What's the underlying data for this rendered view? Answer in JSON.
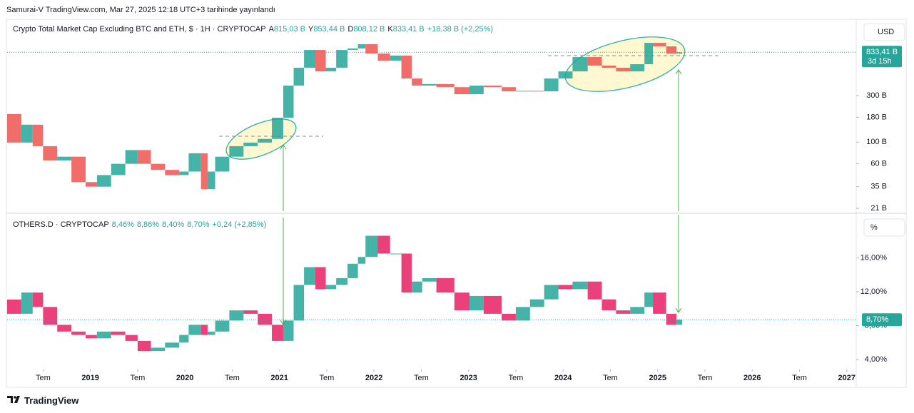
{
  "header": {
    "published": "Samurai-V TradingView.com, Mar 27, 2025 12:18 UTC+3 tarihinde yayınlandı"
  },
  "footer": {
    "brand": "TradingView"
  },
  "chart_data": [
    {
      "type": "candlestick",
      "title": "Crypto Total Market Cap Excluding BTC and ETH, $ · 1H · CRYPTOCAP",
      "ohlc": [
        {
          "key": "A",
          "label": "815,03 B"
        },
        {
          "key": "Y",
          "label": "853,44 B"
        },
        {
          "key": "D",
          "label": "808,12 B"
        },
        {
          "key": "K",
          "label": "833,41 B"
        }
      ],
      "change": "+18,38 B (+2,25%)",
      "unit": "USD",
      "price_label": "833,41 B",
      "countdown": "3d 15h",
      "log_scale": true,
      "up_color": "#26a69a",
      "down_color": "#ef5350",
      "x": [
        2018.12,
        2018.27,
        2018.39,
        2018.5,
        2018.65,
        2018.8,
        2018.95,
        2019.07,
        2019.22,
        2019.37,
        2019.5,
        2019.64,
        2019.79,
        2019.94,
        2020.04,
        2020.17,
        2020.24,
        2020.32,
        2020.47,
        2020.62,
        2020.77,
        2020.92,
        2021.04,
        2021.15,
        2021.26,
        2021.38,
        2021.49,
        2021.6,
        2021.72,
        2021.83,
        2021.91,
        2022.04,
        2022.17,
        2022.29,
        2022.4,
        2022.51,
        2022.66,
        2022.85,
        2023.01,
        2023.16,
        2023.35,
        2023.5,
        2023.65,
        2023.8,
        2023.95,
        2024.1,
        2024.26,
        2024.41,
        2024.56,
        2024.71,
        2024.86,
        2024.95,
        2025.09,
        2025.2,
        2025.26
      ],
      "values": [
        194,
        99,
        151,
        91,
        65,
        71,
        39,
        35,
        46,
        60,
        83,
        60,
        52,
        46,
        50,
        77,
        33,
        50,
        71,
        91,
        99,
        108,
        178,
        380,
        579,
        880,
        531,
        579,
        880,
        912,
        1008,
        809,
        684,
        771,
        449,
        380,
        394,
        366,
        310,
        380,
        366,
        332,
        336,
        332,
        449,
        531,
        744,
        609,
        579,
        531,
        629,
        1041,
        958,
        809,
        833.41
      ],
      "xlim": [
        2018.12,
        2027.1
      ],
      "ylim": [
        19,
        1727
      ],
      "yticks": [
        {
          "value": 21,
          "label": "21 B"
        },
        {
          "value": 35,
          "label": "35 B"
        },
        {
          "value": 60,
          "label": "60 B"
        },
        {
          "value": 100,
          "label": "100 B"
        },
        {
          "value": 180,
          "label": "180 B"
        },
        {
          "value": 300,
          "label": "300 B"
        }
      ]
    },
    {
      "type": "candlestick",
      "title": "OTHERS.D · CRYPTOCAP",
      "ohlc": [
        {
          "label": "8,46%"
        },
        {
          "label": "8,86%"
        },
        {
          "label": "8,40%"
        },
        {
          "label": "8,70%"
        }
      ],
      "change": "+0,24 (+2,85%)",
      "unit": "%",
      "price_label": "8,70%",
      "log_scale": false,
      "up_color": "#26a69a",
      "down_color": "#e91e63",
      "x": [
        2018.12,
        2018.27,
        2018.39,
        2018.5,
        2018.65,
        2018.8,
        2018.95,
        2019.07,
        2019.22,
        2019.37,
        2019.5,
        2019.64,
        2019.79,
        2019.94,
        2020.04,
        2020.17,
        2020.24,
        2020.32,
        2020.47,
        2020.62,
        2020.77,
        2020.92,
        2021.04,
        2021.15,
        2021.26,
        2021.38,
        2021.49,
        2021.6,
        2021.72,
        2021.83,
        2021.91,
        2022.04,
        2022.17,
        2022.29,
        2022.4,
        2022.51,
        2022.66,
        2022.85,
        2023.01,
        2023.16,
        2023.35,
        2023.5,
        2023.65,
        2023.8,
        2023.95,
        2024.1,
        2024.26,
        2024.41,
        2024.56,
        2024.71,
        2024.86,
        2024.95,
        2025.09,
        2025.2,
        2025.26
      ],
      "values": [
        11.08,
        9.4,
        11.9,
        10.2,
        8.1,
        7.3,
        6.9,
        6.5,
        7.3,
        6.9,
        6.2,
        5.0,
        5.4,
        6.0,
        6.9,
        8.1,
        6.9,
        7.3,
        8.6,
        9.8,
        9.4,
        8.1,
        6.2,
        8.6,
        12.8,
        14.9,
        12.3,
        12.8,
        13.6,
        15.3,
        16.1,
        18.6,
        16.5,
        16.5,
        11.9,
        13.2,
        13.6,
        11.9,
        9.8,
        11.5,
        9.4,
        8.6,
        10.2,
        11.1,
        12.8,
        12.3,
        13.2,
        11.1,
        9.8,
        9.4,
        10.2,
        11.9,
        9.4,
        8.1,
        8.7
      ],
      "xlim": [
        2018.12,
        2027.1
      ],
      "ylim": [
        3.08,
        21
      ],
      "yticks": [
        {
          "value": 4,
          "label": "4,00%"
        },
        {
          "value": 8,
          "label": "8,00%"
        },
        {
          "value": 12,
          "label": "12,00%"
        },
        {
          "value": 16,
          "label": "16,00%"
        }
      ],
      "xticks": [
        {
          "value": 2018.5,
          "label": "Tem"
        },
        2019,
        {
          "value": 2019.5,
          "label": "Tem"
        },
        2020,
        {
          "value": 2020.5,
          "label": "Tem"
        },
        2021,
        {
          "value": 2021.5,
          "label": "Tem"
        },
        2022,
        {
          "value": 2022.5,
          "label": "Tem"
        },
        2023,
        {
          "value": 2023.5,
          "label": "Tem"
        },
        2024,
        {
          "value": 2024.5,
          "label": "Tem"
        },
        2025,
        {
          "value": 2025.5,
          "label": "Tem"
        },
        2026,
        {
          "value": 2026.5,
          "label": "Tem"
        },
        2027
      ]
    }
  ]
}
